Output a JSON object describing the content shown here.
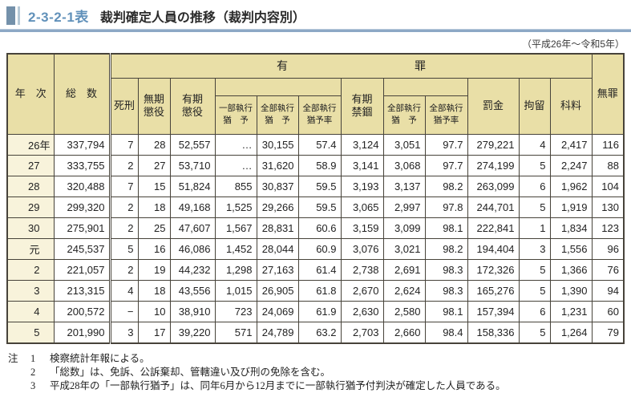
{
  "header": {
    "table_no": "2-3-2-1表",
    "title": "裁判確定人員の推移（裁判内容別）",
    "period": "（平成26年～令和5年）"
  },
  "table": {
    "col_headers": {
      "year": "年　次",
      "total": "総　数",
      "guilty": [
        "有",
        "罪"
      ],
      "death_penalty": "死刑",
      "life_imprisonment": [
        "無期",
        "懲役"
      ],
      "fixed_term_imprisonment": [
        "有期",
        "懲役"
      ],
      "partial_suspension": [
        "一部執行",
        "猶　予"
      ],
      "full_suspension": [
        "全部執行",
        "猶　予"
      ],
      "full_suspension_rate": [
        "全部執行",
        "猶予率"
      ],
      "fixed_term_confinement": [
        "有期",
        "禁錮"
      ],
      "confinement_full_suspension": [
        "全部執行",
        "猶　予"
      ],
      "confinement_full_suspension_rate": [
        "全部執行",
        "猶予率"
      ],
      "fine": "罰金",
      "detention": "拘留",
      "petty_fine": "科料",
      "not_guilty": "無罪"
    },
    "rows": [
      {
        "year": "26",
        "suffix": "年",
        "values": [
          "337,794",
          "7",
          "28",
          "52,557",
          "…",
          "30,155",
          "57.4",
          "3,124",
          "3,051",
          "97.7",
          "279,221",
          "4",
          "2,417",
          "116"
        ]
      },
      {
        "year": "27",
        "suffix": "",
        "values": [
          "333,755",
          "2",
          "27",
          "53,710",
          "…",
          "31,620",
          "58.9",
          "3,141",
          "3,068",
          "97.7",
          "274,199",
          "5",
          "2,247",
          "88"
        ]
      },
      {
        "year": "28",
        "suffix": "",
        "values": [
          "320,488",
          "7",
          "15",
          "51,824",
          "855",
          "30,837",
          "59.5",
          "3,193",
          "3,137",
          "98.2",
          "263,099",
          "6",
          "1,962",
          "104"
        ]
      },
      {
        "year": "29",
        "suffix": "",
        "values": [
          "299,320",
          "2",
          "18",
          "49,168",
          "1,525",
          "29,266",
          "59.5",
          "3,065",
          "2,997",
          "97.8",
          "244,701",
          "5",
          "1,919",
          "130"
        ]
      },
      {
        "year": "30",
        "suffix": "",
        "values": [
          "275,901",
          "2",
          "25",
          "47,607",
          "1,567",
          "28,831",
          "60.6",
          "3,159",
          "3,099",
          "98.1",
          "222,841",
          "1",
          "1,834",
          "123"
        ]
      },
      {
        "year": "元",
        "suffix": "",
        "values": [
          "245,537",
          "5",
          "16",
          "46,086",
          "1,452",
          "28,044",
          "60.9",
          "3,076",
          "3,021",
          "98.2",
          "194,404",
          "3",
          "1,556",
          "96"
        ]
      },
      {
        "year": "2",
        "suffix": "",
        "values": [
          "221,057",
          "2",
          "19",
          "44,232",
          "1,298",
          "27,163",
          "61.4",
          "2,738",
          "2,691",
          "98.3",
          "172,326",
          "5",
          "1,366",
          "76"
        ]
      },
      {
        "year": "3",
        "suffix": "",
        "values": [
          "213,315",
          "4",
          "18",
          "43,556",
          "1,015",
          "26,905",
          "61.8",
          "2,670",
          "2,624",
          "98.3",
          "165,276",
          "5",
          "1,390",
          "94"
        ]
      },
      {
        "year": "4",
        "suffix": "",
        "values": [
          "200,572",
          "−",
          "10",
          "38,910",
          "723",
          "24,069",
          "61.9",
          "2,630",
          "2,580",
          "98.1",
          "157,394",
          "6",
          "1,231",
          "60"
        ]
      },
      {
        "year": "5",
        "suffix": "",
        "values": [
          "201,990",
          "3",
          "17",
          "39,220",
          "571",
          "24,789",
          "63.2",
          "2,703",
          "2,660",
          "98.4",
          "158,336",
          "5",
          "1,264",
          "79"
        ]
      }
    ]
  },
  "notes": {
    "label": "注",
    "items": [
      {
        "num": "1",
        "text": "検察統計年報による。"
      },
      {
        "num": "2",
        "text": "「総数」は、免訴、公訴棄却、管轄違い及び刑の免除を含む。"
      },
      {
        "num": "3",
        "text": "平成28年の「一部執行猶予」は、同年6月から12月までに一部執行猶予付判決が確定した人員である。"
      }
    ]
  },
  "colors": {
    "header_bg": "#e9dfa7",
    "year_col_bg": "#f8f3db",
    "border": "#47433a",
    "title_accent": "#6191ba",
    "rule": "#8ca8c5"
  }
}
